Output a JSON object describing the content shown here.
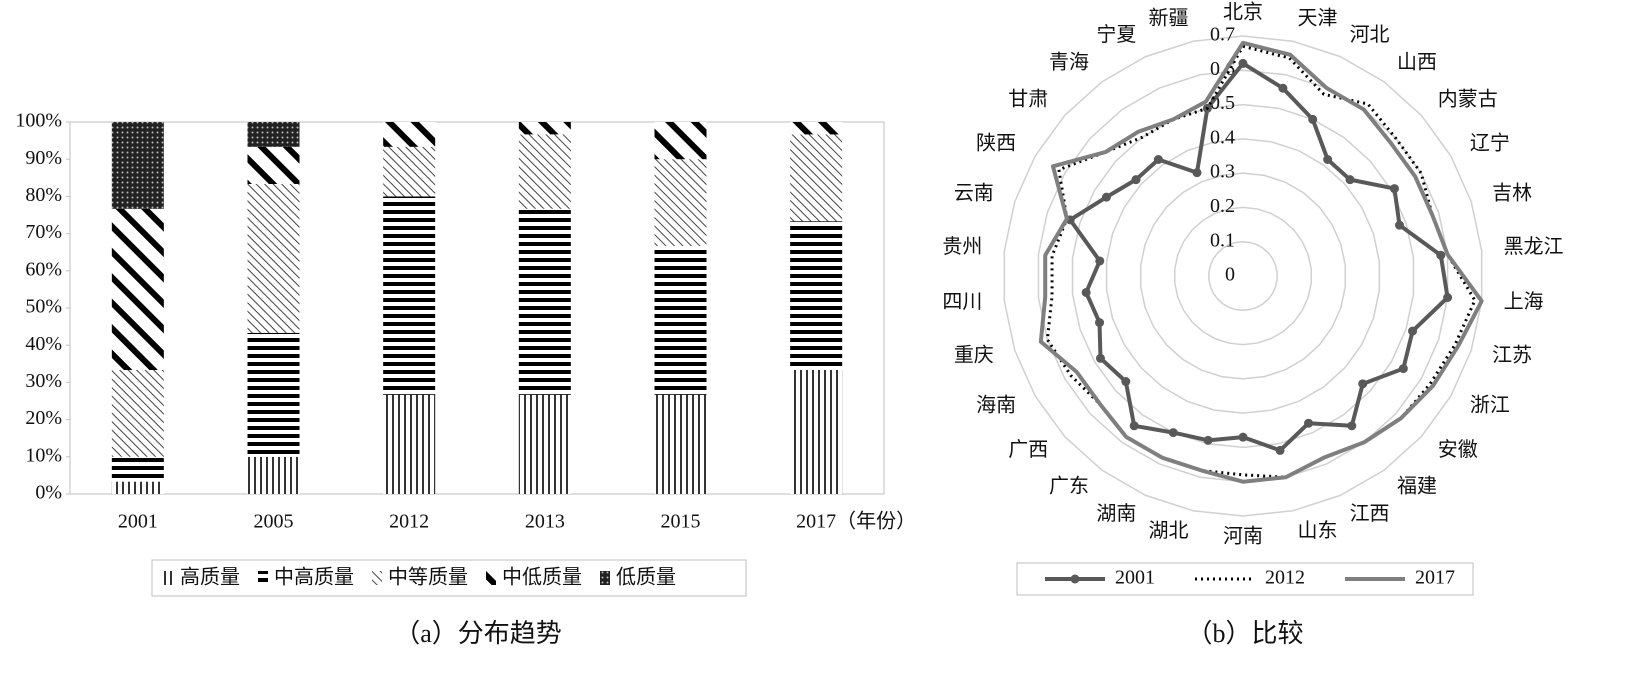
{
  "chart_data": [
    {
      "type": "bar",
      "stacked": true,
      "caption": "（a）分布趋势",
      "categories": [
        "2001",
        "2005",
        "2012",
        "2013",
        "2015",
        "2017"
      ],
      "x_unit": "（年份）",
      "ylim": [
        0,
        100
      ],
      "yticks": [
        {
          "value": 0,
          "label": "0%"
        },
        {
          "value": 10,
          "label": "10%"
        },
        {
          "value": 20,
          "label": "20%"
        },
        {
          "value": 30,
          "label": "30%"
        },
        {
          "value": 40,
          "label": "40%"
        },
        {
          "value": 50,
          "label": "50%"
        },
        {
          "value": 60,
          "label": "60%"
        },
        {
          "value": 70,
          "label": "70%"
        },
        {
          "value": 80,
          "label": "80%"
        },
        {
          "value": 90,
          "label": "90%"
        },
        {
          "value": 100,
          "label": "100%"
        }
      ],
      "legend": "bottom",
      "series": [
        {
          "name": "高质量",
          "color": "#000000",
          "pattern": "vertical",
          "values": [
            3.33,
            10,
            26.67,
            26.67,
            26.67,
            33.33
          ]
        },
        {
          "name": "中高质量",
          "color": "#000000",
          "pattern": "horizontal",
          "values": [
            6.67,
            33.33,
            53.33,
            50,
            40,
            40
          ]
        },
        {
          "name": "中等质量",
          "color": "#000000",
          "pattern": "diag-thin",
          "values": [
            23.33,
            40,
            13.33,
            20,
            23.33,
            23.33
          ]
        },
        {
          "name": "中低质量",
          "color": "#000000",
          "pattern": "diag-thick",
          "values": [
            43.33,
            10,
            6.67,
            3.33,
            10,
            3.33
          ]
        },
        {
          "name": "低质量",
          "color": "#000000",
          "pattern": "dots",
          "values": [
            23.33,
            6.67,
            0,
            0,
            0,
            0
          ]
        }
      ]
    },
    {
      "type": "radar",
      "caption": "（b）比较",
      "grid": true,
      "legend": "bottom",
      "categories": [
        "北京",
        "天津",
        "河北",
        "山西",
        "内蒙古",
        "辽宁",
        "吉林",
        "黑龙江",
        "上海",
        "江苏",
        "浙江",
        "安徽",
        "福建",
        "江西",
        "山东",
        "河南",
        "湖北",
        "湖南",
        "广东",
        "广西",
        "海南",
        "重庆",
        "四川",
        "贵州",
        "云南",
        "陕西",
        "甘肃",
        "青海",
        "宁夏",
        "新疆"
      ],
      "ylim": [
        0,
        0.7
      ],
      "yticks": [
        0,
        0.1,
        0.2,
        0.3,
        0.4,
        0.5,
        0.6,
        0.7
      ],
      "series": [
        {
          "name": "2001",
          "color": "#595959",
          "line": "solid",
          "marker": "circle",
          "values": [
            0.62,
            0.56,
            0.5,
            0.42,
            0.42,
            0.51,
            0.48,
            0.58,
            0.6,
            0.52,
            0.54,
            0.47,
            0.54,
            0.47,
            0.52,
            0.47,
            0.49,
            0.5,
            0.54,
            0.46,
            0.48,
            0.44,
            0.46,
            0.42,
            0.53,
            0.46,
            0.42,
            0.42,
            0.33,
            0.5
          ]
        },
        {
          "name": "2012",
          "color": "#000000",
          "line": "dotted",
          "values": [
            0.67,
            0.65,
            0.58,
            0.62,
            0.6,
            0.6,
            0.58,
            0.6,
            0.68,
            0.65,
            0.63,
            0.62,
            0.6,
            0.58,
            0.6,
            0.58,
            0.58,
            0.58,
            0.58,
            0.56,
            0.58,
            0.6,
            0.56,
            0.56,
            0.54,
            0.62,
            0.54,
            0.5,
            0.5,
            0.5
          ]
        },
        {
          "name": "2017",
          "color": "#7f7f7f",
          "line": "solid",
          "values": [
            0.68,
            0.66,
            0.6,
            0.6,
            0.58,
            0.58,
            0.58,
            0.6,
            0.7,
            0.66,
            0.64,
            0.62,
            0.6,
            0.58,
            0.6,
            0.6,
            0.58,
            0.58,
            0.58,
            0.56,
            0.56,
            0.62,
            0.58,
            0.58,
            0.54,
            0.64,
            0.54,
            0.52,
            0.5,
            0.52
          ]
        }
      ]
    }
  ]
}
